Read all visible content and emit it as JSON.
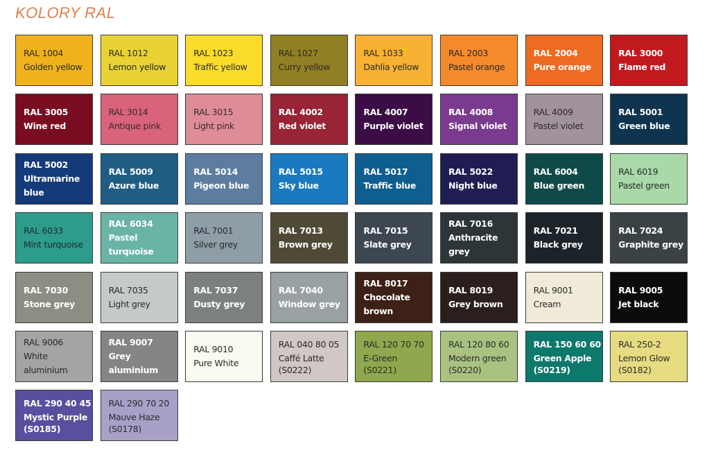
{
  "title": "KOLORY RAL",
  "swatches": [
    {
      "code": "RAL 1004",
      "name": "Golden yellow",
      "color": "#efb21c",
      "text": "#2a2a2a"
    },
    {
      "code": "RAL 1012",
      "name": "Lemon yellow",
      "color": "#e8d234",
      "text": "#2a2a2a"
    },
    {
      "code": "RAL 1023",
      "name": "Traffic yellow",
      "color": "#fbdc2a",
      "text": "#2a2a2a"
    },
    {
      "code": "RAL 1027",
      "name": "Curry yellow",
      "color": "#917f23",
      "text": "#2a2a2a"
    },
    {
      "code": "RAL 1033",
      "name": "Dahlia yellow",
      "color": "#f8b133",
      "text": "#2a2a2a"
    },
    {
      "code": "RAL 2003",
      "name": "Pastel orange",
      "color": "#f58a2a",
      "text": "#2a2a2a"
    },
    {
      "code": "RAL 2004",
      "name": "Pure orange",
      "color": "#ee6b22",
      "text": "#ffffff"
    },
    {
      "code": "RAL 3000",
      "name": "Flame red",
      "color": "#c2191f",
      "text": "#ffffff"
    },
    {
      "code": "RAL 3005",
      "name": "Wine red",
      "color": "#7a0c22",
      "text": "#ffffff"
    },
    {
      "code": "RAL 3014",
      "name": "Antique pink",
      "color": "#d8637a",
      "text": "#3a2a2a"
    },
    {
      "code": "RAL 3015",
      "name": "Light pink",
      "color": "#de8c98",
      "text": "#3a2a2a"
    },
    {
      "code": "RAL 4002",
      "name": "Red violet",
      "color": "#982435",
      "text": "#ffffff"
    },
    {
      "code": "RAL 4007",
      "name": "Purple violet",
      "color": "#3b0c45",
      "text": "#ffffff"
    },
    {
      "code": "RAL 4008",
      "name": "Signal violet",
      "color": "#7a3a8e",
      "text": "#ffffff"
    },
    {
      "code": "RAL 4009",
      "name": "Pastel violet",
      "color": "#a1929e",
      "text": "#2a2a2a"
    },
    {
      "code": "RAL 5001",
      "name": "Green blue",
      "color": "#0f3450",
      "text": "#ffffff"
    },
    {
      "code": "RAL 5002",
      "name": "Ultramarine blue",
      "color": "#143a7a",
      "text": "#ffffff"
    },
    {
      "code": "RAL 5009",
      "name": "Azure blue",
      "color": "#1f5d85",
      "text": "#ffffff"
    },
    {
      "code": "RAL 5014",
      "name": "Pigeon blue",
      "color": "#5d7da0",
      "text": "#ffffff"
    },
    {
      "code": "RAL 5015",
      "name": "Sky blue",
      "color": "#1a7abf",
      "text": "#ffffff"
    },
    {
      "code": "RAL 5017",
      "name": "Traffic blue",
      "color": "#0e5e90",
      "text": "#ffffff"
    },
    {
      "code": "RAL 5022",
      "name": "Night blue",
      "color": "#1f1d52",
      "text": "#ffffff"
    },
    {
      "code": "RAL 6004",
      "name": "Blue green",
      "color": "#0e4a48",
      "text": "#ffffff"
    },
    {
      "code": "RAL 6019",
      "name": "Pastel green",
      "color": "#a9d9a8",
      "text": "#2a2a2a"
    },
    {
      "code": "RAL 6033",
      "name": "Mint turquoise",
      "color": "#2d9c8d",
      "text": "#1f2a2a"
    },
    {
      "code": "RAL 6034",
      "name": "Pastel turquoise",
      "color": "#6ab4a6",
      "text": "#ffffff"
    },
    {
      "code": "RAL 7001",
      "name": "Silver grey",
      "color": "#8f9da6",
      "text": "#2a2a2a"
    },
    {
      "code": "RAL 7013",
      "name": "Brown grey",
      "color": "#4f4a36",
      "text": "#ffffff"
    },
    {
      "code": "RAL 7015",
      "name": "Slate grey",
      "color": "#3d4752",
      "text": "#ffffff"
    },
    {
      "code": "RAL 7016",
      "name": "Anthracite grey",
      "color": "#2d3538",
      "text": "#ffffff"
    },
    {
      "code": "RAL 7021",
      "name": "Black grey",
      "color": "#1c2429",
      "text": "#ffffff"
    },
    {
      "code": "RAL 7024",
      "name": "Graphite grey",
      "color": "#3a4246",
      "text": "#ffffff"
    },
    {
      "code": "RAL 7030",
      "name": "Stone grey",
      "color": "#8c8d83",
      "text": "#ffffff"
    },
    {
      "code": "RAL 7035",
      "name": "Light grey",
      "color": "#c5cac6",
      "text": "#2a2a2a"
    },
    {
      "code": "RAL 7037",
      "name": "Dusty grey",
      "color": "#7d8080",
      "text": "#ffffff"
    },
    {
      "code": "RAL 7040",
      "name": "Window grey",
      "color": "#9aa1a4",
      "text": "#ffffff"
    },
    {
      "code": "RAL 8017",
      "name": "Chocolate brown",
      "color": "#3e2116",
      "text": "#ffffff"
    },
    {
      "code": "RAL 8019",
      "name": "Grey brown",
      "color": "#2a1f1d",
      "text": "#ffffff"
    },
    {
      "code": "RAL 9001",
      "name": "Cream",
      "color": "#f0ebd8",
      "text": "#2a2a2a"
    },
    {
      "code": "RAL 9005",
      "name": "Jet black",
      "color": "#0b0b0b",
      "text": "#ffffff"
    },
    {
      "code": "RAL 9006",
      "name": "White aluminium",
      "color": "#a2a4a6",
      "text": "#2a2a2a"
    },
    {
      "code": "RAL 9007",
      "name": "Grey aluminium",
      "color": "#858585",
      "text": "#ffffff"
    },
    {
      "code": "RAL 9010",
      "name": "Pure White",
      "color": "#fbfaf1",
      "text": "#2a2a2a"
    },
    {
      "code": "RAL 040 80 05",
      "name": "Caffé Latte",
      "extra": "(S0222)",
      "color": "#d1c7c4",
      "text": "#2a2a2a"
    },
    {
      "code": "RAL 120 70 70",
      "name": "E-Green",
      "extra": "(S0221)",
      "color": "#8fa74d",
      "text": "#2a2a2a"
    },
    {
      "code": "RAL 120 80 60",
      "name": "Modern green",
      "extra": "(S0220)",
      "color": "#aac280",
      "text": "#2a2a2a"
    },
    {
      "code": "RAL 150 60 60",
      "name": "Green Apple",
      "extra": "(S0219)",
      "color": "#0d786c",
      "text": "#ffffff"
    },
    {
      "code": "RAL 250-2",
      "name": "Lemon Glow",
      "extra": "(S0182)",
      "color": "#e6db80",
      "text": "#2a2a2a"
    },
    {
      "code": "RAL 290 40 45",
      "name": "Mystic Purple",
      "extra": "(S0185)",
      "color": "#584f9e",
      "text": "#ffffff"
    },
    {
      "code": "RAL 290 70 20",
      "name": "Mauve Haze",
      "extra": "(S0178)",
      "color": "#a9a0c8",
      "text": "#2a2a2a"
    }
  ]
}
